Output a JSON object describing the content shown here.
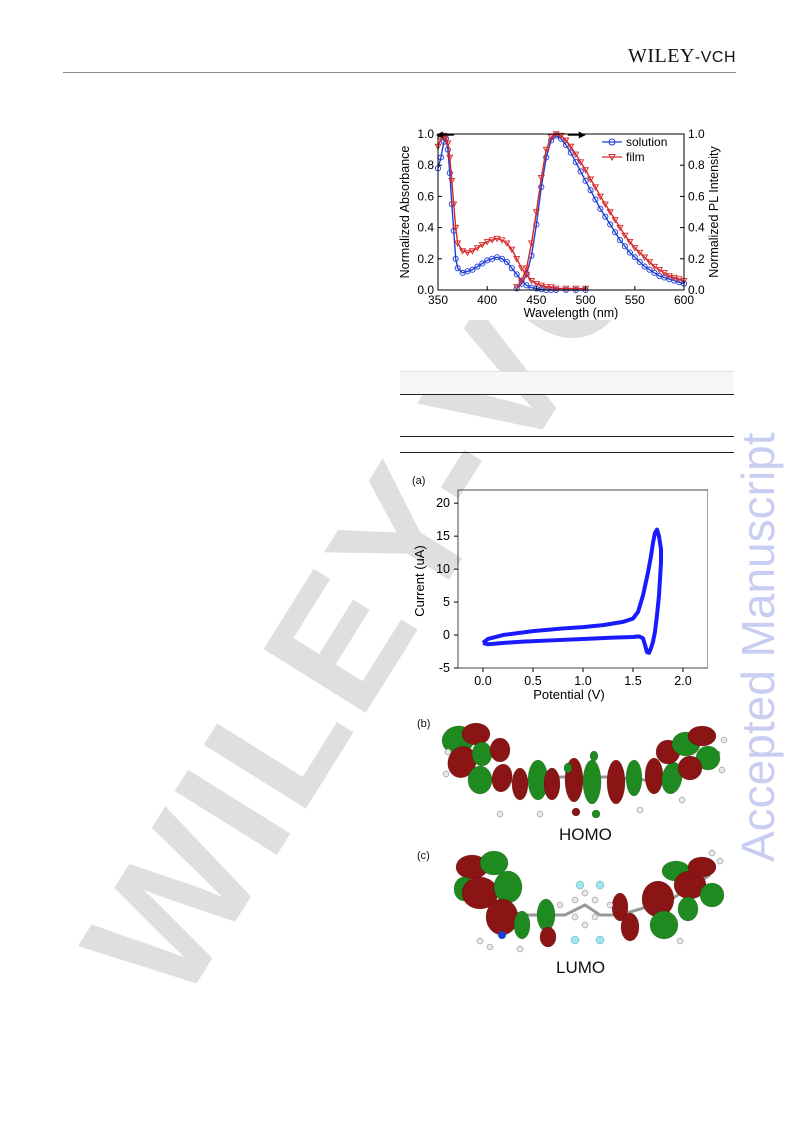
{
  "header": {
    "publisher_main": "WILEY",
    "publisher_suffix": "-VCH"
  },
  "side_stamp": {
    "text": "Accepted Manuscript",
    "color": "#c8cdf2"
  },
  "watermark": {
    "text": "WILEY-VCH",
    "color": "#d3d3d3"
  },
  "figure_a": {
    "panel_label": "(a)",
    "orbital_labels": {
      "b": "(b)",
      "c": "(c)",
      "homo": "HOMO",
      "lumo": "LUMO"
    }
  },
  "chart_data": [
    {
      "type": "line",
      "xlabel": "Wavelength (nm)",
      "ylabel": "Normalized Absorbance",
      "ylabel_right": "Normalized PL Intensity",
      "xlim": [
        350,
        600
      ],
      "ylim": [
        0.0,
        1.0
      ],
      "xticks": [
        350,
        400,
        450,
        500,
        550,
        600
      ],
      "yticks": [
        "0.0",
        "0.2",
        "0.4",
        "0.6",
        "0.8",
        "1.0"
      ],
      "legend": "top-right",
      "arrows": [
        {
          "x": 358,
          "direction": "left"
        },
        {
          "x": 490,
          "direction": "right"
        }
      ],
      "series": [
        {
          "name": "solution",
          "kind": "absorption",
          "color": "#1f3fd6",
          "marker": "circle",
          "x": [
            350,
            353,
            356,
            358,
            360,
            362,
            364,
            366,
            368,
            370,
            375,
            380,
            385,
            390,
            395,
            400,
            405,
            410,
            415,
            420,
            425,
            430,
            435,
            440,
            445,
            450,
            455,
            460,
            465,
            470,
            480,
            490,
            500
          ],
          "y": [
            0.78,
            0.85,
            0.95,
            0.97,
            0.9,
            0.75,
            0.55,
            0.38,
            0.2,
            0.14,
            0.11,
            0.12,
            0.13,
            0.15,
            0.17,
            0.19,
            0.2,
            0.21,
            0.2,
            0.18,
            0.14,
            0.1,
            0.06,
            0.03,
            0.015,
            0.01,
            0.005,
            0,
            0,
            0,
            0,
            0,
            0
          ]
        },
        {
          "name": "",
          "kind": "emission",
          "color": "#1f3fd6",
          "marker": "circle",
          "x": [
            430,
            435,
            440,
            445,
            450,
            455,
            460,
            465,
            470,
            475,
            480,
            485,
            490,
            495,
            500,
            505,
            510,
            515,
            520,
            525,
            530,
            535,
            540,
            545,
            550,
            555,
            560,
            565,
            570,
            575,
            580,
            585,
            590,
            595,
            600
          ],
          "y": [
            0.01,
            0.04,
            0.1,
            0.22,
            0.42,
            0.66,
            0.85,
            0.96,
            0.99,
            0.97,
            0.93,
            0.88,
            0.82,
            0.76,
            0.7,
            0.64,
            0.58,
            0.52,
            0.47,
            0.42,
            0.37,
            0.32,
            0.28,
            0.24,
            0.21,
            0.18,
            0.15,
            0.13,
            0.11,
            0.09,
            0.08,
            0.07,
            0.06,
            0.05,
            0.04
          ]
        },
        {
          "name": "film",
          "kind": "absorption",
          "color": "#d62828",
          "marker": "triangle-down",
          "x": [
            350,
            353,
            356,
            358,
            360,
            362,
            364,
            366,
            368,
            370,
            375,
            380,
            385,
            390,
            395,
            400,
            405,
            410,
            415,
            420,
            425,
            430,
            435,
            440,
            445,
            450,
            455,
            460,
            465,
            470,
            480,
            490,
            500
          ],
          "y": [
            0.92,
            0.97,
            0.99,
            0.98,
            0.94,
            0.85,
            0.7,
            0.55,
            0.4,
            0.3,
            0.25,
            0.24,
            0.25,
            0.27,
            0.29,
            0.31,
            0.32,
            0.33,
            0.32,
            0.3,
            0.26,
            0.2,
            0.14,
            0.1,
            0.06,
            0.04,
            0.03,
            0.02,
            0.02,
            0.01,
            0.01,
            0.01,
            0.01
          ]
        },
        {
          "name": "",
          "kind": "emission",
          "color": "#d62828",
          "marker": "triangle-down",
          "x": [
            430,
            435,
            440,
            445,
            450,
            455,
            460,
            465,
            470,
            475,
            480,
            485,
            490,
            495,
            500,
            505,
            510,
            515,
            520,
            525,
            530,
            535,
            540,
            545,
            550,
            555,
            560,
            565,
            570,
            575,
            580,
            585,
            590,
            595,
            600
          ],
          "y": [
            0.02,
            0.06,
            0.14,
            0.3,
            0.5,
            0.72,
            0.9,
            0.98,
            1.0,
            0.99,
            0.96,
            0.92,
            0.87,
            0.82,
            0.77,
            0.71,
            0.66,
            0.6,
            0.55,
            0.5,
            0.45,
            0.4,
            0.35,
            0.31,
            0.27,
            0.24,
            0.21,
            0.18,
            0.15,
            0.13,
            0.11,
            0.09,
            0.08,
            0.07,
            0.06
          ]
        }
      ]
    },
    {
      "type": "line",
      "xlabel": "Potential (V)",
      "ylabel": "Current (uA)",
      "xlim": [
        -0.25,
        2.25
      ],
      "ylim": [
        -5,
        22
      ],
      "xticks": [
        "0.0",
        "0.5",
        "1.0",
        "1.5",
        "2.0"
      ],
      "yticks": [
        "-5",
        "0",
        "5",
        "10",
        "15",
        "20"
      ],
      "series": [
        {
          "name": "",
          "color": "#1a1aff",
          "x": [
            0.0,
            0.05,
            0.2,
            0.5,
            0.8,
            1.0,
            1.2,
            1.4,
            1.5,
            1.55,
            1.6,
            1.65,
            1.68,
            1.7,
            1.72,
            1.74,
            1.76,
            1.78,
            1.78,
            1.76,
            1.74,
            1.72,
            1.7,
            1.68,
            1.66,
            1.64,
            1.62,
            1.6,
            1.56,
            1.5,
            1.3,
            1.0,
            0.7,
            0.4,
            0.2,
            0.05,
            0.0
          ],
          "y": [
            -1.2,
            -0.6,
            0.0,
            0.6,
            1.0,
            1.2,
            1.5,
            2.0,
            2.5,
            3.5,
            6.0,
            9.5,
            12.0,
            14.0,
            15.5,
            16.0,
            15.0,
            13.0,
            11.0,
            6.0,
            3.0,
            0.5,
            -1.0,
            -2.0,
            -2.7,
            -2.6,
            -1.5,
            -0.5,
            -0.2,
            -0.3,
            -0.4,
            -0.6,
            -0.8,
            -1.0,
            -1.2,
            -1.4,
            -1.2
          ]
        }
      ]
    }
  ]
}
